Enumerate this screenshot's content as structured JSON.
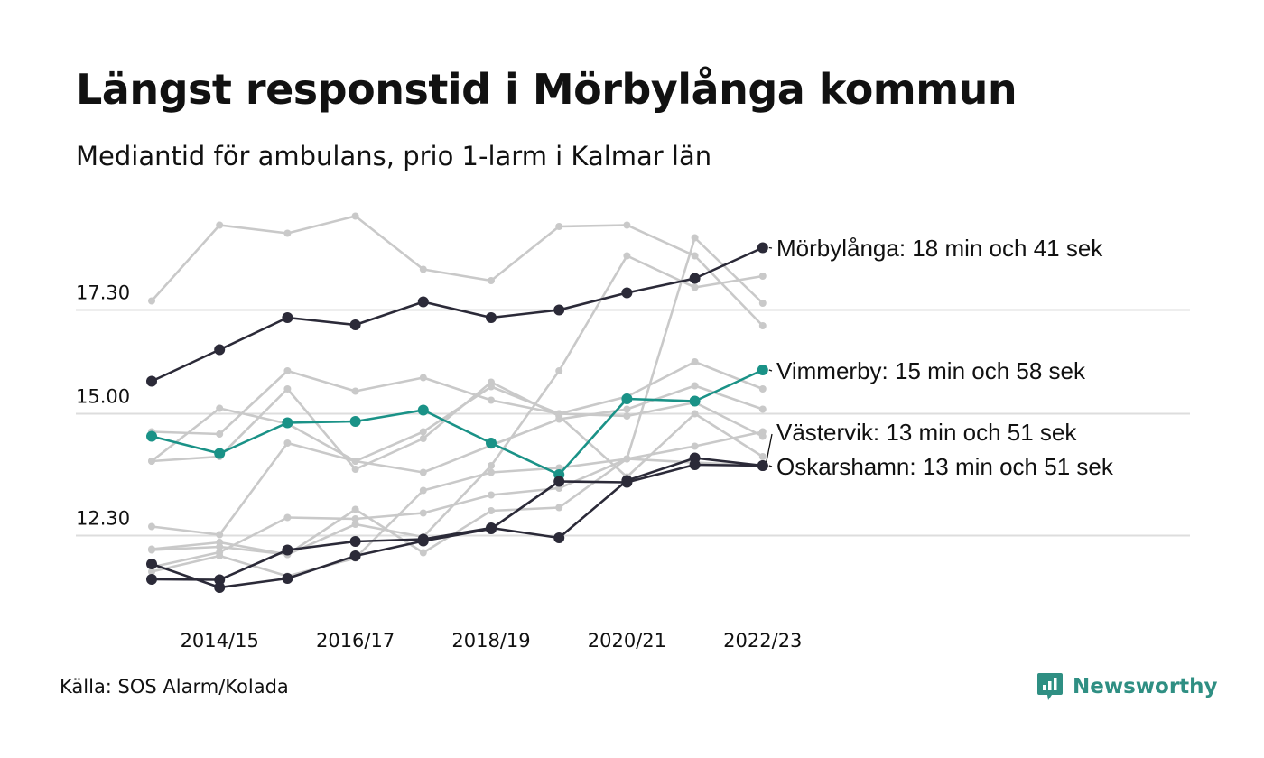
{
  "title": "Längst responstid i Mörbylånga kommun",
  "subtitle": "Mediantid för ambulans, prio 1-larm i Kalmar län",
  "source": "Källa: SOS Alarm/Kolada",
  "brand": "Newsworthy",
  "colors": {
    "highlight": "#1a9287",
    "dark": "#2b2a38",
    "background": "#c9c9c9",
    "grid": "#dddddd",
    "brand": "#2f8f83"
  },
  "chart_data": {
    "type": "line",
    "x": [
      "2013/14",
      "2014/15",
      "2015/16",
      "2016/17",
      "2017/18",
      "2018/19",
      "2019/20",
      "2020/21",
      "2021/22",
      "2022/23"
    ],
    "x_ticks": [
      "2014/15",
      "2016/17",
      "2018/19",
      "2020/21",
      "2022/23"
    ],
    "y_ticks": [
      "12.30",
      "15.00",
      "17.30"
    ],
    "ylim": [
      10.5,
      20.0
    ],
    "grid": "horizontal",
    "series": [
      {
        "role": "background",
        "values": [
          17.5,
          19.18,
          19.0,
          19.38,
          18.2,
          17.95,
          19.15,
          19.18,
          18.5,
          16.95
        ]
      },
      {
        "role": "background",
        "values": [
          13.95,
          15.12,
          14.78,
          13.95,
          13.7,
          14.3,
          14.88,
          15.1,
          15.62,
          15.1
        ]
      },
      {
        "role": "background",
        "values": [
          12.5,
          12.32,
          14.35,
          13.95,
          14.6,
          15.6,
          15.0,
          14.95,
          15.25,
          14.5
        ]
      },
      {
        "role": "background",
        "values": [
          12.0,
          12.15,
          11.88,
          12.88,
          11.92,
          12.85,
          12.92,
          14.0,
          18.9,
          17.45
        ]
      },
      {
        "role": "background",
        "values": [
          11.98,
          12.05,
          11.88,
          12.55,
          12.27,
          13.85,
          15.95,
          18.5,
          17.8,
          18.05
        ]
      },
      {
        "role": "background",
        "values": [
          14.6,
          14.55,
          15.95,
          15.5,
          15.8,
          15.3,
          15.0,
          15.38,
          16.15,
          15.55
        ]
      },
      {
        "role": "background",
        "values": [
          13.95,
          14.05,
          15.55,
          13.77,
          14.45,
          15.7,
          14.95,
          13.6,
          15.0,
          14.05
        ]
      },
      {
        "role": "background",
        "values": [
          11.5,
          11.85,
          11.4,
          11.8,
          13.3,
          13.7,
          13.8,
          14.0,
          14.28,
          14.6
        ]
      },
      {
        "role": "background",
        "values": [
          11.6,
          11.93,
          12.7,
          12.67,
          12.8,
          13.2,
          13.35,
          14.0,
          13.92,
          13.85
        ]
      },
      {
        "role": "highlight",
        "name": "Mörbylånga",
        "label": "Mörbylånga: 18 min och 41 sek",
        "values": [
          15.72,
          16.42,
          17.13,
          16.97,
          17.48,
          17.13,
          17.3,
          17.68,
          18.0,
          18.68
        ]
      },
      {
        "role": "highlight",
        "name": "Vimmerby",
        "label": "Vimmerby: 15 min och 58 sek",
        "values": [
          14.5,
          14.12,
          14.8,
          14.83,
          15.08,
          14.35,
          13.65,
          15.33,
          15.28,
          15.97
        ]
      },
      {
        "role": "highlight",
        "name": "Västervik",
        "label": "Västervik: 13 min och 51 sek",
        "values": [
          11.33,
          11.32,
          11.98,
          12.17,
          12.22,
          12.47,
          12.25,
          13.52,
          14.02,
          13.85
        ]
      },
      {
        "role": "highlight",
        "name": "Oskarshamn",
        "label": "Oskarshamn: 13 min och 51 sek",
        "values": [
          11.67,
          11.15,
          11.35,
          11.85,
          12.18,
          12.45,
          13.5,
          13.48,
          13.87,
          13.85
        ]
      }
    ]
  }
}
